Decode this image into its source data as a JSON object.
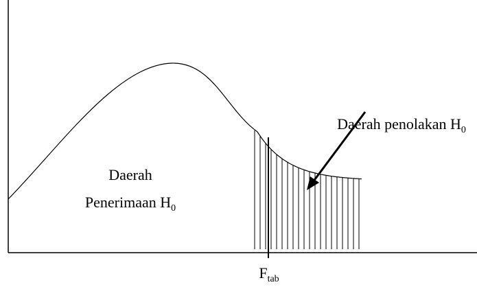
{
  "acceptance_region": {
    "line1": "Daerah",
    "line2": "Penerimaan H",
    "line2_sub": "0"
  },
  "rejection_region": {
    "text": "Daerah penolakan H",
    "sub": "0"
  },
  "critical_value": {
    "text": "F",
    "sub": "tab"
  }
}
